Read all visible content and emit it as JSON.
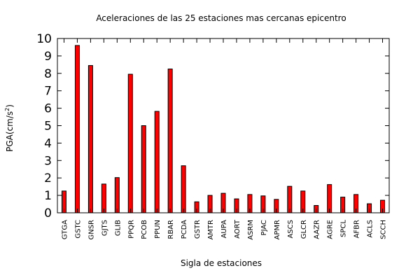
{
  "chart_data": {
    "type": "bar",
    "title": "Aceleraciones de las 25 estaciones mas cercanas epicentro",
    "xlabel": "Sigla de estaciones",
    "ylabel": "PGA(cm/s",
    "ylabel_sup": "2",
    "ylabel_end": ")",
    "categories": [
      "GTGA",
      "GSTC",
      "GNSR",
      "GJTS",
      "GLIB",
      "PPQR",
      "PCOB",
      "PPUN",
      "RBAR",
      "PCDA",
      "GSTR",
      "AMTR",
      "AUPA",
      "AORT",
      "ASRM",
      "PJAC",
      "APMR",
      "ASCS",
      "GLCR",
      "AAZR",
      "AGRE",
      "SPCL",
      "AFBR",
      "ACLS",
      "SCCH"
    ],
    "values": [
      1.25,
      9.6,
      8.45,
      1.65,
      2.02,
      7.95,
      5.0,
      5.82,
      8.25,
      2.7,
      0.63,
      1.0,
      1.12,
      0.8,
      1.05,
      0.97,
      0.77,
      1.52,
      1.25,
      0.42,
      1.62,
      0.9,
      1.05,
      0.52,
      0.72
    ],
    "ylim": [
      0,
      10
    ],
    "yticks": [
      "0",
      "1",
      "2",
      "3",
      "4",
      "5",
      "6",
      "7",
      "8",
      "9",
      "10"
    ],
    "grid": false,
    "legend": "none",
    "bar_color": "#ff0000",
    "bar_edge_color": "#000000"
  }
}
